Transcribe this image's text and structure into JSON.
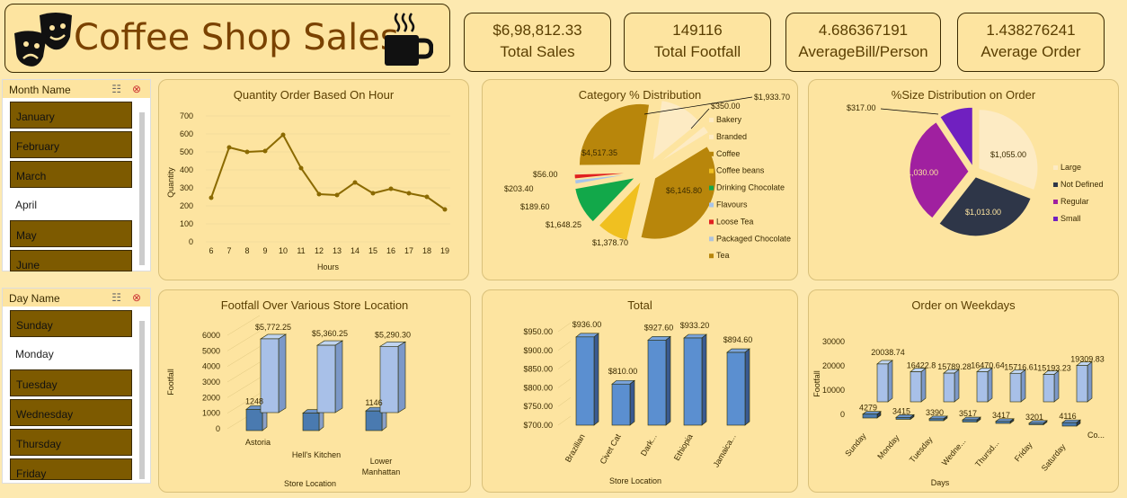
{
  "header": {
    "title": "Coffee Shop Sales"
  },
  "kpis": [
    {
      "value": "$6,98,812.33",
      "label": "Total Sales"
    },
    {
      "value": "149116",
      "label": "Total Footfall"
    },
    {
      "value": "4.686367191",
      "label": "AverageBill/Person"
    },
    {
      "value": "1.438276241",
      "label": "Average Order"
    }
  ],
  "month_slicer": {
    "title": "Month Name",
    "items": [
      "January",
      "February",
      "March",
      "April",
      "May",
      "June"
    ],
    "selected": [
      true,
      true,
      true,
      false,
      true,
      true
    ]
  },
  "day_slicer": {
    "title": "Day Name",
    "items": [
      "Sunday",
      "Monday",
      "Tuesday",
      "Wednesday",
      "Thursday",
      "Friday"
    ],
    "selected": [
      true,
      false,
      true,
      true,
      true,
      true
    ]
  },
  "colors": {
    "gold": "#b8860b",
    "brown": "#7d5a00",
    "blue": "#5b8fd0"
  },
  "chart_data": [
    {
      "id": "qty_hour",
      "type": "line",
      "title": "Quantity Order Based On Hour",
      "xlabel": "Hours",
      "ylabel": "Quantity",
      "ylim": [
        0,
        700
      ],
      "yticks": [
        0,
        100,
        200,
        300,
        400,
        500,
        600,
        700
      ],
      "x": [
        6,
        7,
        8,
        9,
        10,
        11,
        12,
        13,
        14,
        15,
        16,
        17,
        18,
        19
      ],
      "values": [
        245,
        525,
        500,
        505,
        595,
        410,
        265,
        260,
        330,
        270,
        295,
        270,
        250,
        180
      ]
    },
    {
      "id": "category",
      "type": "pie",
      "title": "Category % Distribution",
      "labels": [
        "Bakery",
        "Branded",
        "Coffee",
        "Coffee beans",
        "Drinking Chocolate",
        "Flavours",
        "Loose Tea",
        "Packaged Chocolate",
        "Tea"
      ],
      "values": [
        1933.7,
        350.0,
        6145.8,
        1378.7,
        1648.25,
        189.6,
        203.4,
        56.0,
        4517.35
      ],
      "value_labels": [
        "$1,933.70",
        "$350.00",
        "$6,145.80",
        "$1,378.70",
        "$1,648.25",
        "$189.60",
        "$203.40",
        "$56.00",
        "$4,517.35"
      ],
      "colors": [
        "#fdebc4",
        "#fdebc4",
        "#b8860b",
        "#f0c020",
        "#12a84a",
        "#a8c4e8",
        "#e02020",
        "#b0c4dc",
        "#b8860b"
      ]
    },
    {
      "id": "size",
      "type": "pie",
      "title": "%Size Distribution on Order",
      "labels": [
        "Large",
        "Not Defined",
        "Regular",
        "Small"
      ],
      "values": [
        1055.0,
        1013.0,
        1030.0,
        317.0
      ],
      "value_labels": [
        "$1,055.00",
        "$1,013.00",
        "$1,030.00",
        "$317.00"
      ],
      "colors": [
        "#fdebc4",
        "#2e3648",
        "#a020a0",
        "#7020c0"
      ]
    },
    {
      "id": "footfall_location",
      "type": "bar",
      "title": "Footfall Over Various Store Location",
      "xlabel": "Store Location",
      "ylabel": "Footfall",
      "ylim": [
        0,
        6000
      ],
      "yticks": [
        0,
        1000,
        2000,
        3000,
        4000,
        5000,
        6000
      ],
      "categories": [
        "Astoria",
        "Hell's Kitchen",
        "Lower Manhattan"
      ],
      "series": [
        {
          "values": [
            1248,
            1000,
            1146
          ],
          "labels": [
            "1248",
            "",
            "1146"
          ]
        },
        {
          "values": [
            5772.25,
            5360.25,
            5290.3
          ],
          "labels": [
            "$5,772.25",
            "$5,360.25",
            "$5,290.30"
          ]
        }
      ]
    },
    {
      "id": "total",
      "type": "bar",
      "title": "Total",
      "xlabel": "Store Location",
      "ylim": [
        700,
        950
      ],
      "yticks": [
        "$700.00",
        "$750.00",
        "$800.00",
        "$850.00",
        "$900.00",
        "$950.00"
      ],
      "categories": [
        "Brazilian",
        "Civet Cat",
        "Dark...",
        "Ethiopia",
        "Jamaica..."
      ],
      "values": [
        936.0,
        810.0,
        927.6,
        933.2,
        894.6
      ],
      "value_labels": [
        "$936.00",
        "$810.00",
        "$927.60",
        "$933.20",
        "$894.60"
      ]
    },
    {
      "id": "weekday",
      "type": "bar",
      "title": "Order on Weekdays",
      "xlabel": "Days",
      "ylabel": "Footfall",
      "ylim": [
        0,
        30000
      ],
      "yticks": [
        "0",
        "10000",
        "20000",
        "30000"
      ],
      "depth_label": "Co...",
      "categories": [
        "Sunday",
        "Monday",
        "Tuesday",
        "Wedne...",
        "Thursd...",
        "Friday",
        "Saturday"
      ],
      "series": [
        {
          "values": [
            4279,
            3415,
            3390,
            3517,
            3417,
            3201,
            4116
          ],
          "labels": [
            "4279",
            "3415",
            "3390",
            "3517",
            "3417",
            "3201",
            "4116"
          ]
        },
        {
          "values": [
            20038.74,
            16422.8,
            15789.28,
            16470.64,
            15716.61,
            15193.23,
            19309.83
          ],
          "labels": [
            "20038.74",
            "16422.8",
            "15789.28",
            "16470.64",
            "15716.61",
            "15193.23",
            "19309.83"
          ]
        }
      ]
    }
  ]
}
